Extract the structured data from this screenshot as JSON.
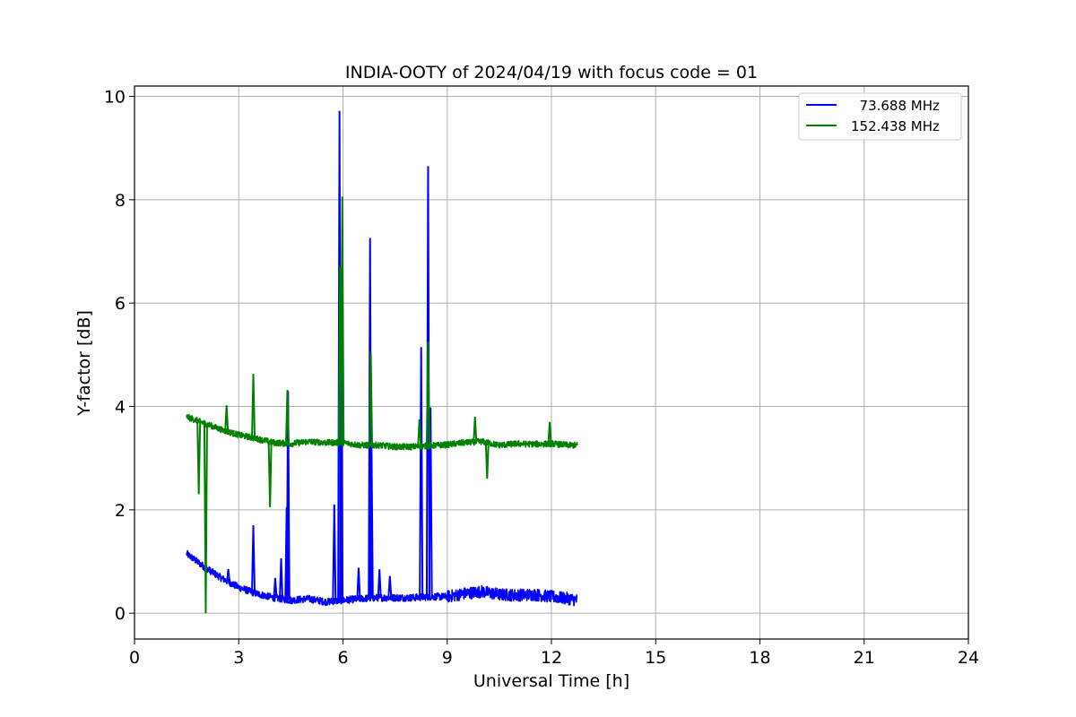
{
  "chart_data": {
    "type": "line",
    "title": "INDIA-OOTY of 2024/04/19 with focus code = 01",
    "xlabel": "Universal Time [h]",
    "ylabel": "Y-factor [dB]",
    "xlim": [
      0,
      24
    ],
    "ylim": [
      -0.5,
      10.2
    ],
    "xticks": [
      0,
      3,
      6,
      9,
      12,
      15,
      18,
      21,
      24
    ],
    "yticks": [
      0,
      2,
      4,
      6,
      8,
      10
    ],
    "grid": true,
    "legend_position": "top-right",
    "series": [
      {
        "name": "  73.688 MHz",
        "color": "#0000ff",
        "baseline": [
          [
            1.5,
            1.15
          ],
          [
            2.0,
            0.9
          ],
          [
            2.5,
            0.68
          ],
          [
            3.0,
            0.5
          ],
          [
            3.5,
            0.38
          ],
          [
            4.0,
            0.3
          ],
          [
            4.5,
            0.25
          ],
          [
            5.0,
            0.28
          ],
          [
            5.5,
            0.22
          ],
          [
            6.0,
            0.25
          ],
          [
            6.5,
            0.28
          ],
          [
            7.0,
            0.3
          ],
          [
            7.5,
            0.3
          ],
          [
            8.0,
            0.3
          ],
          [
            8.5,
            0.32
          ],
          [
            9.0,
            0.32
          ],
          [
            9.5,
            0.38
          ],
          [
            10.0,
            0.42
          ],
          [
            10.5,
            0.36
          ],
          [
            11.0,
            0.35
          ],
          [
            11.5,
            0.36
          ],
          [
            12.0,
            0.32
          ],
          [
            12.5,
            0.28
          ],
          [
            12.75,
            0.25
          ]
        ],
        "spikes": [
          [
            2.7,
            0.85
          ],
          [
            3.42,
            1.7
          ],
          [
            4.05,
            0.68
          ],
          [
            4.22,
            1.06
          ],
          [
            4.38,
            2.05
          ],
          [
            4.42,
            4.3
          ],
          [
            5.75,
            2.1
          ],
          [
            5.9,
            9.72
          ],
          [
            5.95,
            6.0
          ],
          [
            6.45,
            0.88
          ],
          [
            6.78,
            7.26
          ],
          [
            6.82,
            3.4
          ],
          [
            7.05,
            0.85
          ],
          [
            7.35,
            0.72
          ],
          [
            8.25,
            5.15
          ],
          [
            8.45,
            8.65
          ],
          [
            8.52,
            3.98
          ]
        ]
      },
      {
        "name": "152.438 MHz",
        "color": "#008000",
        "baseline": [
          [
            1.5,
            3.8
          ],
          [
            2.0,
            3.68
          ],
          [
            2.5,
            3.55
          ],
          [
            3.0,
            3.45
          ],
          [
            3.5,
            3.38
          ],
          [
            4.0,
            3.3
          ],
          [
            4.5,
            3.28
          ],
          [
            5.0,
            3.32
          ],
          [
            5.5,
            3.3
          ],
          [
            6.0,
            3.3
          ],
          [
            6.5,
            3.25
          ],
          [
            7.0,
            3.25
          ],
          [
            7.5,
            3.22
          ],
          [
            8.0,
            3.22
          ],
          [
            8.5,
            3.24
          ],
          [
            9.0,
            3.26
          ],
          [
            9.5,
            3.3
          ],
          [
            10.0,
            3.32
          ],
          [
            10.5,
            3.25
          ],
          [
            11.0,
            3.28
          ],
          [
            11.5,
            3.27
          ],
          [
            12.0,
            3.28
          ],
          [
            12.5,
            3.25
          ],
          [
            12.75,
            3.25
          ]
        ],
        "spikes": [
          [
            1.85,
            2.3
          ],
          [
            2.05,
            0.0
          ],
          [
            2.65,
            4.02
          ],
          [
            3.42,
            4.63
          ],
          [
            3.9,
            2.05
          ],
          [
            4.4,
            4.32
          ],
          [
            5.92,
            6.7
          ],
          [
            5.98,
            8.06
          ],
          [
            6.8,
            5.05
          ],
          [
            8.2,
            3.75
          ],
          [
            8.45,
            5.25
          ],
          [
            9.8,
            3.8
          ],
          [
            10.15,
            2.6
          ],
          [
            11.95,
            3.7
          ]
        ]
      }
    ]
  }
}
